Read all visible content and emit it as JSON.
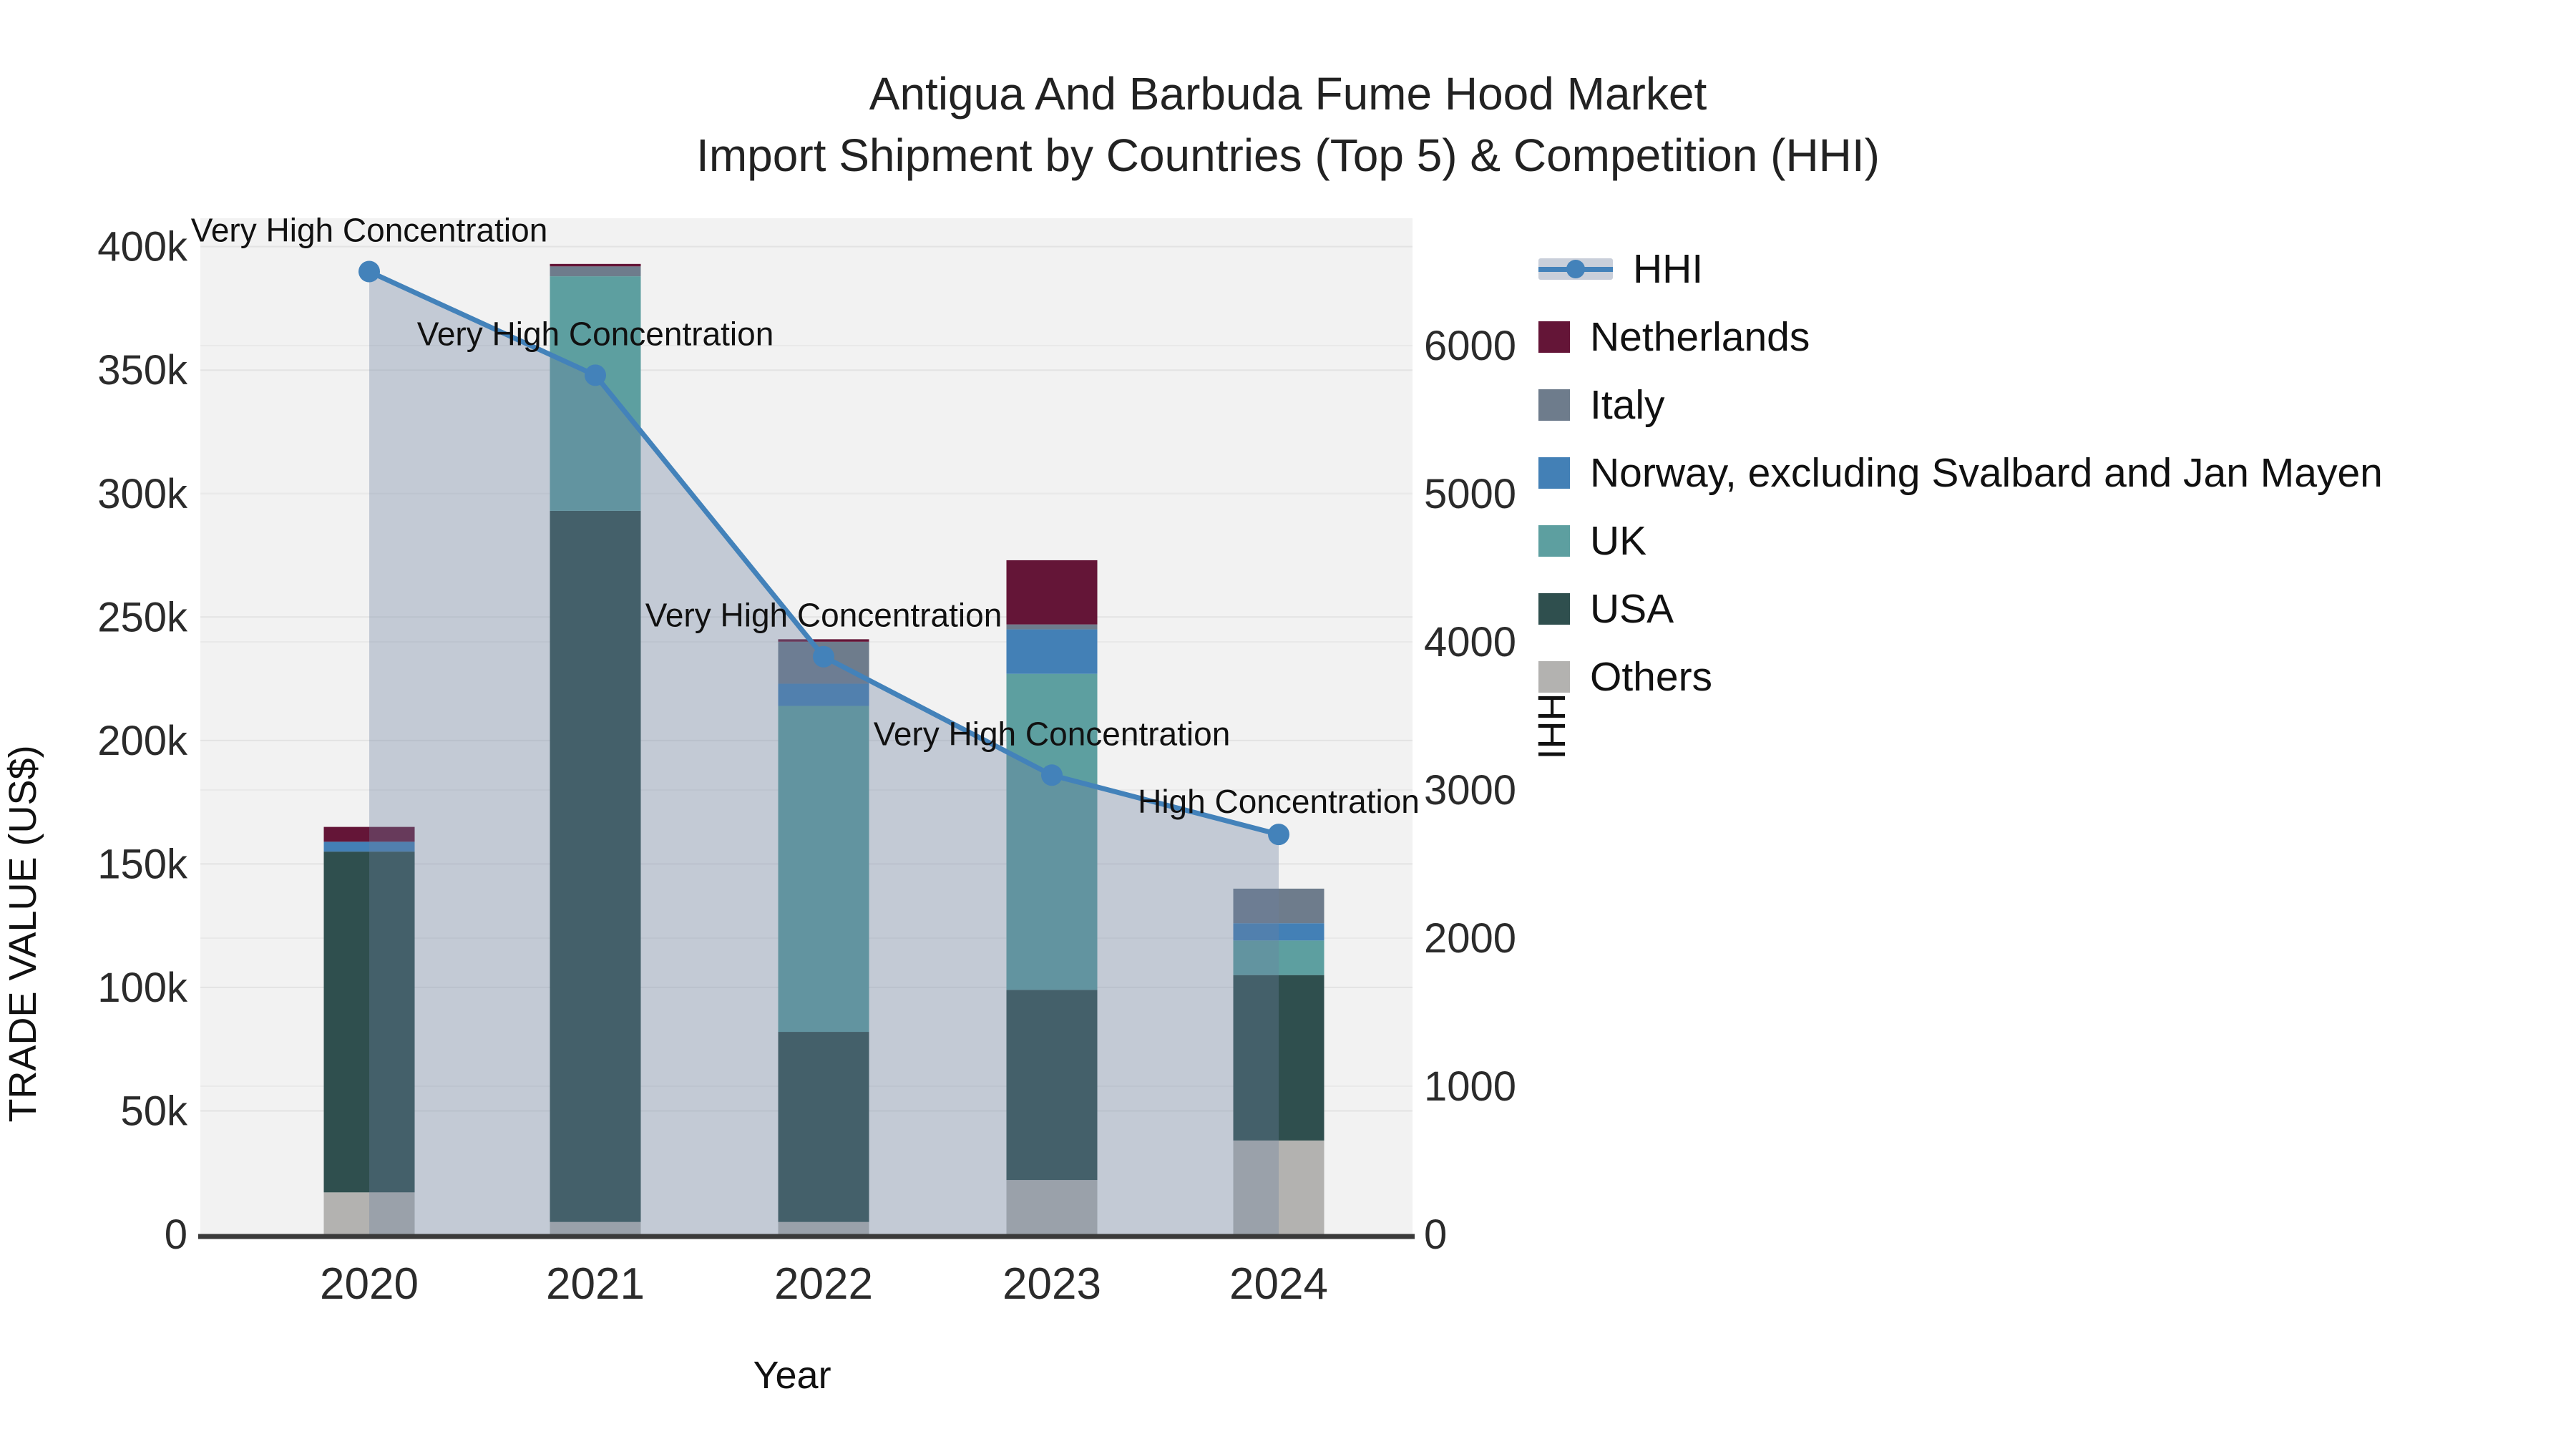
{
  "title": {
    "line1": "Antigua And Barbuda Fume Hood Market",
    "line2": "Import Shipment by Countries (Top 5) & Competition (HHI)"
  },
  "legend": {
    "items": [
      {
        "label": "HHI",
        "kind": "line",
        "color": "#4382ba",
        "band_color": "#c9cfda"
      },
      {
        "label": "Netherlands",
        "kind": "swatch",
        "color": "#641537"
      },
      {
        "label": "Italy",
        "kind": "swatch",
        "color": "#6e7c8c"
      },
      {
        "label": "Norway, excluding Svalbard and Jan Mayen",
        "kind": "swatch",
        "color": "#4380b6"
      },
      {
        "label": "UK",
        "kind": "swatch",
        "color": "#5d9fa0"
      },
      {
        "label": "USA",
        "kind": "swatch",
        "color": "#2f4f4e"
      },
      {
        "label": "Others",
        "kind": "swatch",
        "color": "#b3b2b0"
      }
    ]
  },
  "chart_data": {
    "type": "bar+line",
    "title": "Antigua And Barbuda Fume Hood Market — Import Shipment by Countries (Top 5) & Competition (HHI)",
    "categories": [
      "2020",
      "2021",
      "2022",
      "2023",
      "2024"
    ],
    "xlabel": "Year",
    "ylabel_left": "TRADE VALUE (US$)",
    "ylabel_right": "HHI",
    "series": [
      {
        "name": "Others",
        "color": "#b3b2b0",
        "values": [
          17000,
          5000,
          5000,
          22000,
          38000
        ]
      },
      {
        "name": "USA",
        "color": "#2f4f4e",
        "values": [
          138000,
          288000,
          77000,
          77000,
          67000
        ]
      },
      {
        "name": "UK",
        "color": "#5d9fa0",
        "values": [
          0,
          95000,
          132000,
          128000,
          14000
        ]
      },
      {
        "name": "Norway, excluding Svalbard and Jan Mayen",
        "color": "#4380b6",
        "values": [
          4000,
          0,
          9000,
          18000,
          7000
        ]
      },
      {
        "name": "Italy",
        "color": "#6e7c8c",
        "values": [
          0,
          4000,
          17000,
          2000,
          14000
        ]
      },
      {
        "name": "Netherlands",
        "color": "#641537",
        "values": [
          6000,
          1000,
          1000,
          26000,
          0
        ]
      }
    ],
    "line_series": {
      "name": "HHI",
      "color": "#4382ba",
      "area_fill": "rgba(108,128,160,0.35)",
      "values": [
        6500,
        5800,
        3900,
        3100,
        2700
      ]
    },
    "annotations": [
      {
        "category": "2020",
        "text": "Very High Concentration"
      },
      {
        "category": "2021",
        "text": "Very High Concentration"
      },
      {
        "category": "2022",
        "text": "Very High Concentration"
      },
      {
        "category": "2023",
        "text": "Very High Concentration"
      },
      {
        "category": "2024",
        "text": "High Concentration"
      }
    ],
    "axes": {
      "left": {
        "max": 411500,
        "ticks": [
          {
            "v": 0,
            "label": "0"
          },
          {
            "v": 50000,
            "label": "50k"
          },
          {
            "v": 100000,
            "label": "100k"
          },
          {
            "v": 150000,
            "label": "150k"
          },
          {
            "v": 200000,
            "label": "200k"
          },
          {
            "v": 250000,
            "label": "250k"
          },
          {
            "v": 300000,
            "label": "300k"
          },
          {
            "v": 350000,
            "label": "350k"
          },
          {
            "v": 400000,
            "label": "400k"
          }
        ]
      },
      "right": {
        "max": 6860,
        "ticks": [
          {
            "v": 0,
            "label": "0"
          },
          {
            "v": 1000,
            "label": "1000"
          },
          {
            "v": 2000,
            "label": "2000"
          },
          {
            "v": 3000,
            "label": "3000"
          },
          {
            "v": 4000,
            "label": "4000"
          },
          {
            "v": 5000,
            "label": "5000"
          },
          {
            "v": 6000,
            "label": "6000"
          }
        ]
      }
    },
    "layout": {
      "grid": true,
      "legend_position": "right",
      "plot_bg": "#f2f2f2",
      "axis_line_color": "#3a3a3a"
    }
  }
}
